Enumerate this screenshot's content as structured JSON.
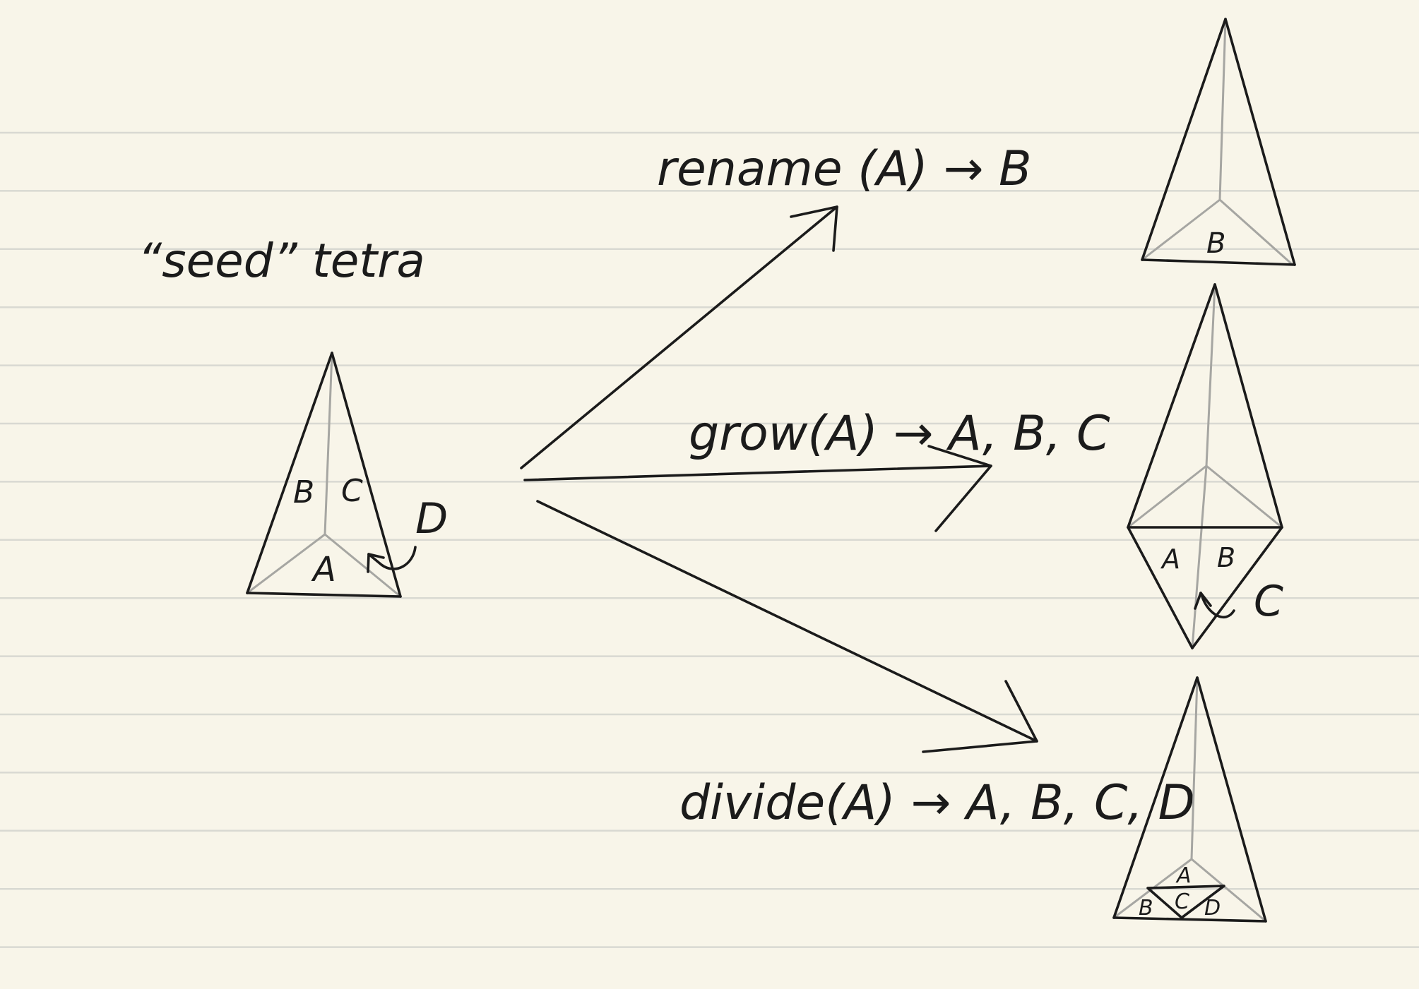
{
  "colors": {
    "paper": "#f8f5e9",
    "ink": "#1b1b1b",
    "hidden_edge": "#a6a6a2",
    "rule": "#d9d9d2"
  },
  "seed": {
    "title": "“seed” tetra",
    "face_a": "A",
    "face_b": "B",
    "face_c": "C",
    "face_d": "D"
  },
  "rename": {
    "label": "rename (A) → B",
    "face_b": "B"
  },
  "grow": {
    "label": "grow(A) → A, B, C",
    "face_a": "A",
    "face_b": "B",
    "face_c": "C"
  },
  "divide": {
    "label": "divide(A) → A, B, C, D",
    "face_a": "A",
    "face_b": "B",
    "face_c": "C",
    "face_d": "D"
  }
}
